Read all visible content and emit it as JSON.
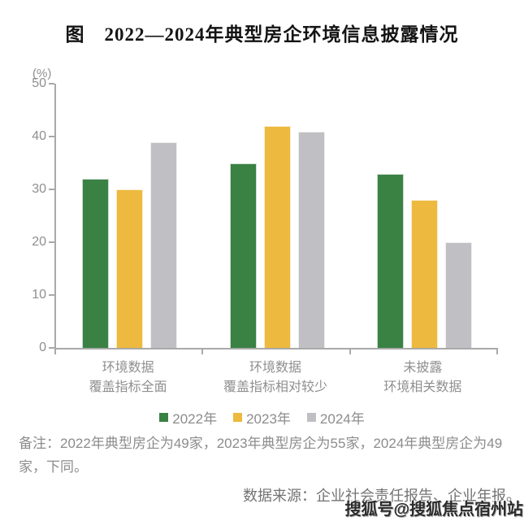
{
  "title": "图　2022—2024年典型房企环境信息披露情况",
  "chart_data": {
    "type": "bar",
    "title": "图　2022—2024年典型房企环境信息披露情况",
    "ylabel": "(%)",
    "ylim": [
      0,
      50
    ],
    "yticks": [
      0,
      10,
      20,
      30,
      40,
      50
    ],
    "grid": false,
    "legend_position": "bottom",
    "categories": [
      "环境数据\n覆盖指标全面",
      "环境数据\n覆盖指标相对较少",
      "未披露\n环境相关数据"
    ],
    "series": [
      {
        "name": "2022年",
        "color": "#3a8144",
        "values": [
          32,
          35,
          33
        ]
      },
      {
        "name": "2023年",
        "color": "#edb93e",
        "values": [
          30,
          42,
          28
        ]
      },
      {
        "name": "2024年",
        "color": "#c0c0c4",
        "values": [
          39,
          41,
          20
        ]
      }
    ],
    "axis_color": "#a9a9a9",
    "label_color": "#8f8f8f"
  },
  "note": "备注：2022年典型房企为49家，2023年典型房企为55家，2024年典型房企为49家，下同。",
  "source": "数据来源：企业社会责任报告、企业年报。",
  "watermark": "搜狐号@搜狐焦点宿州站"
}
